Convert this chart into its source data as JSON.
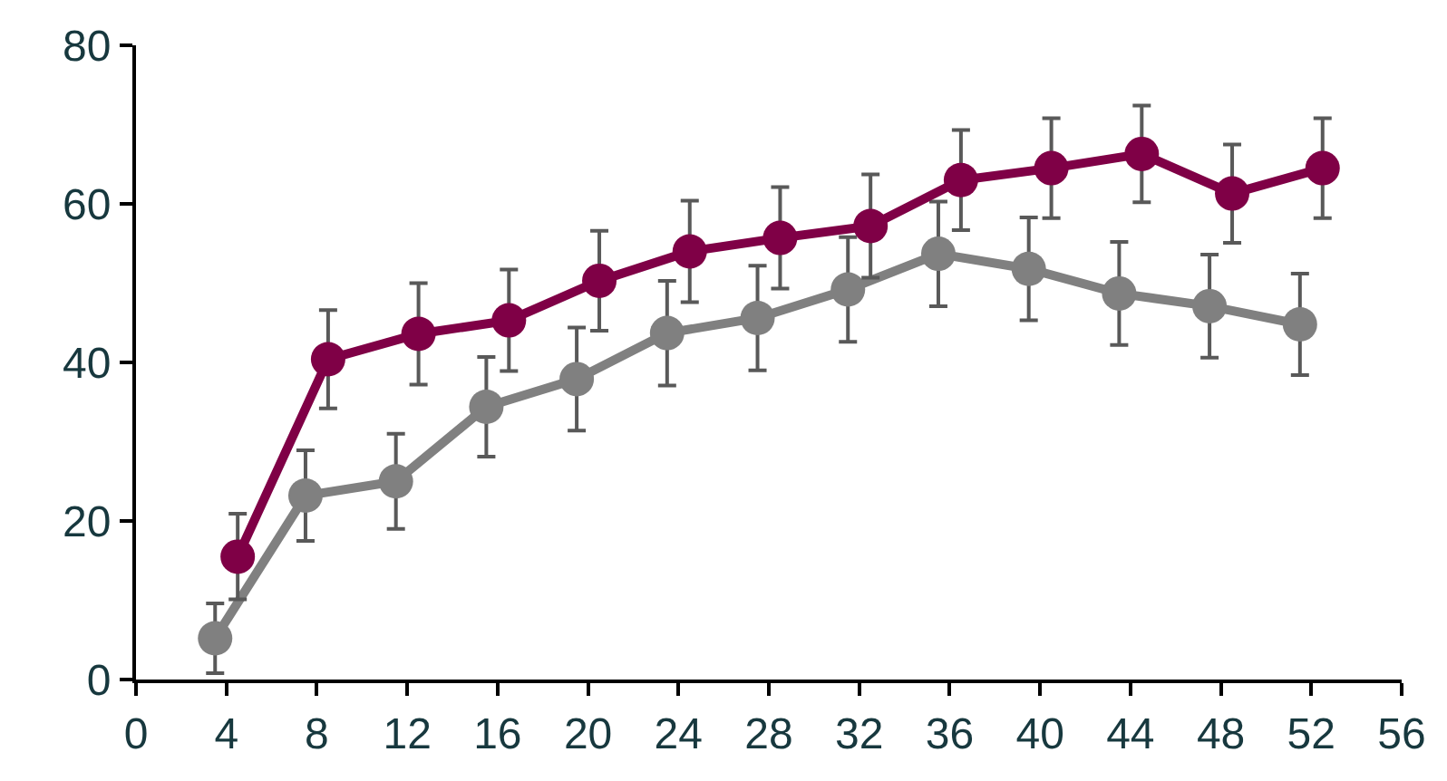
{
  "chart_data": {
    "type": "line",
    "marker": "circle",
    "line_style": "solid",
    "xlim": [
      0,
      56
    ],
    "xticks": [
      0,
      4,
      8,
      12,
      16,
      20,
      24,
      28,
      32,
      36,
      40,
      44,
      48,
      52,
      56
    ],
    "ylim": [
      0,
      80
    ],
    "yticks": [
      0,
      20,
      40,
      60,
      80
    ],
    "series": [
      {
        "color": "#808080",
        "x": [
          3.5,
          7.5,
          11.5,
          15.5,
          19.5,
          23.5,
          27.5,
          31.5,
          35.5,
          39.5,
          43.5,
          47.5,
          51.5
        ],
        "values": [
          5.2,
          23.2,
          25.0,
          34.4,
          37.9,
          43.7,
          45.6,
          49.2,
          53.7,
          51.8,
          48.7,
          47.1,
          44.8
        ],
        "errors": [
          4.4,
          5.7,
          6.0,
          6.3,
          6.5,
          6.6,
          6.6,
          6.6,
          6.6,
          6.5,
          6.5,
          6.5,
          6.4
        ]
      },
      {
        "color": "#7f0046",
        "x": [
          4.5,
          8.5,
          12.5,
          16.5,
          20.5,
          24.5,
          28.5,
          32.5,
          36.5,
          40.5,
          44.5,
          48.5,
          52.5
        ],
        "values": [
          15.5,
          40.4,
          43.6,
          45.3,
          50.3,
          54.0,
          55.7,
          57.2,
          63.0,
          64.5,
          66.3,
          61.3,
          64.5
        ],
        "errors": [
          5.4,
          6.2,
          6.4,
          6.4,
          6.3,
          6.4,
          6.4,
          6.5,
          6.3,
          6.3,
          6.1,
          6.2,
          6.3
        ]
      }
    ]
  }
}
